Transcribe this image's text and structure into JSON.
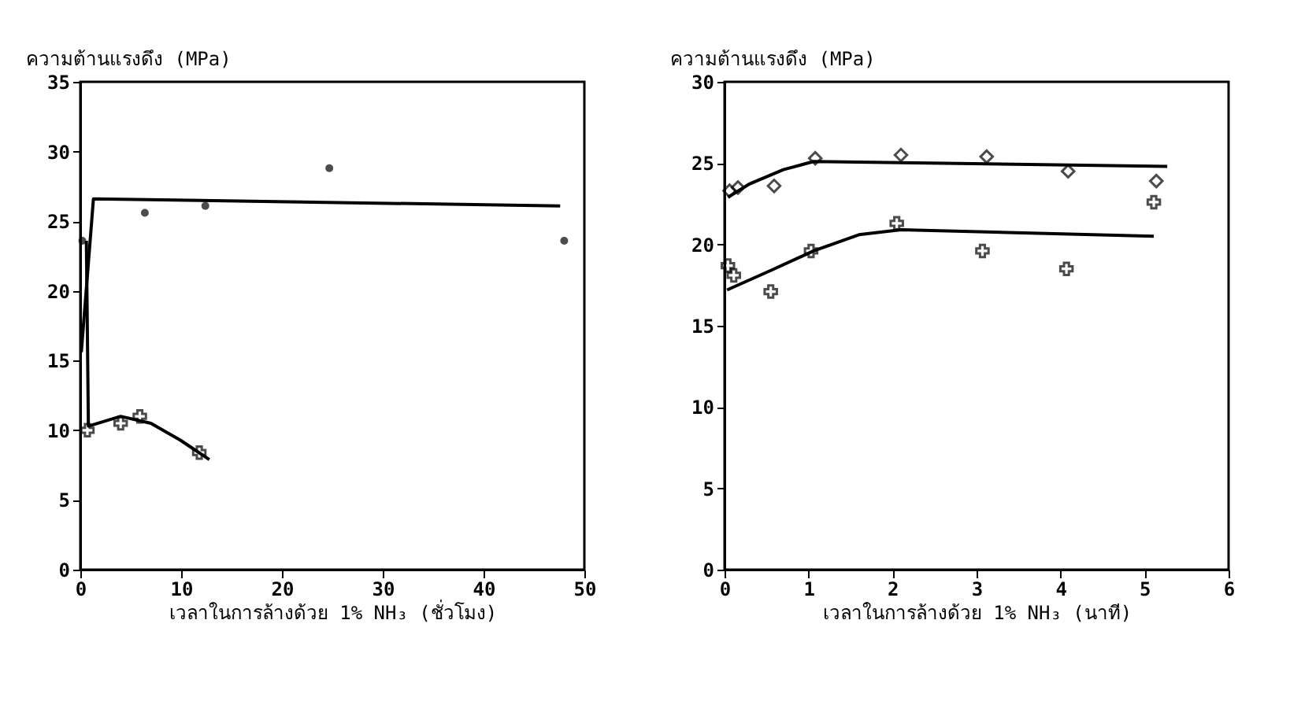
{
  "chart_data": [
    {
      "type": "scatter",
      "ylabel": "ความต้านแรงดึง (MPa)",
      "xlabel": "เวลาในการล้างด้วย 1% NH₃ (ชั่วโมง)",
      "xlim": [
        0,
        50
      ],
      "xticks": [
        0,
        10,
        20,
        30,
        40,
        50
      ],
      "ylim": [
        0,
        35
      ],
      "yticks": [
        0,
        5,
        10,
        15,
        20,
        25,
        30,
        35
      ],
      "grid": false,
      "series": [
        {
          "type": "line",
          "marker": "none",
          "color": "#000000",
          "x": [
            0.1,
            1.3,
            47.6
          ],
          "values": [
            15.6,
            26.6,
            26.1
          ]
        },
        {
          "type": "line",
          "marker": "none",
          "color": "#000000",
          "x": [
            0.6,
            0.8,
            4,
            7,
            9.9,
            12.8
          ],
          "values": [
            23.6,
            10.3,
            11.0,
            10.5,
            9.3,
            7.9
          ]
        },
        {
          "marker": "circle",
          "color": "#000000",
          "x": [
            0.2,
            6.4,
            12.4,
            24.7,
            48
          ],
          "values": [
            23.6,
            25.6,
            26.1,
            28.8,
            23.6
          ]
        },
        {
          "marker": "cross",
          "color": "#000000",
          "x": [
            0.7,
            4.0,
            5.9,
            11.8
          ],
          "values": [
            10.0,
            10.5,
            11.0,
            8.4
          ]
        }
      ]
    },
    {
      "type": "scatter",
      "ylabel": "ความต้านแรงดึง (MPa)",
      "xlabel": "เวลาในการล้างด้วย 1% NH₃ (นาที)",
      "xlim": [
        0,
        6
      ],
      "xticks": [
        0,
        1,
        2,
        3,
        4,
        5,
        6
      ],
      "ylim": [
        0,
        30
      ],
      "yticks": [
        0,
        5,
        10,
        15,
        20,
        25,
        30
      ],
      "grid": false,
      "series": [
        {
          "type": "line",
          "marker": "none",
          "color": "#000000",
          "x": [
            0.04,
            0.29,
            0.7,
            1.06,
            5.27
          ],
          "values": [
            22.9,
            23.7,
            24.6,
            25.1,
            24.8
          ]
        },
        {
          "type": "line",
          "marker": "none",
          "color": "#000000",
          "x": [
            0.03,
            0.55,
            1.06,
            1.6,
            2.1,
            5.11
          ],
          "values": [
            17.2,
            18.4,
            19.6,
            20.6,
            20.9,
            20.5
          ]
        },
        {
          "marker": "diamond",
          "color": "#000000",
          "x": [
            0.06,
            0.16,
            0.59,
            1.08,
            2.1,
            3.12,
            4.09,
            5.14
          ],
          "values": [
            23.3,
            23.5,
            23.6,
            25.3,
            25.5,
            25.4,
            24.5,
            23.9
          ]
        },
        {
          "marker": "cross",
          "color": "#000000",
          "x": [
            0.04,
            0.11,
            0.55,
            1.03,
            2.05,
            3.07,
            4.07,
            5.11
          ],
          "values": [
            18.7,
            18.1,
            17.1,
            19.6,
            21.3,
            19.6,
            18.5,
            22.6
          ]
        }
      ]
    }
  ]
}
